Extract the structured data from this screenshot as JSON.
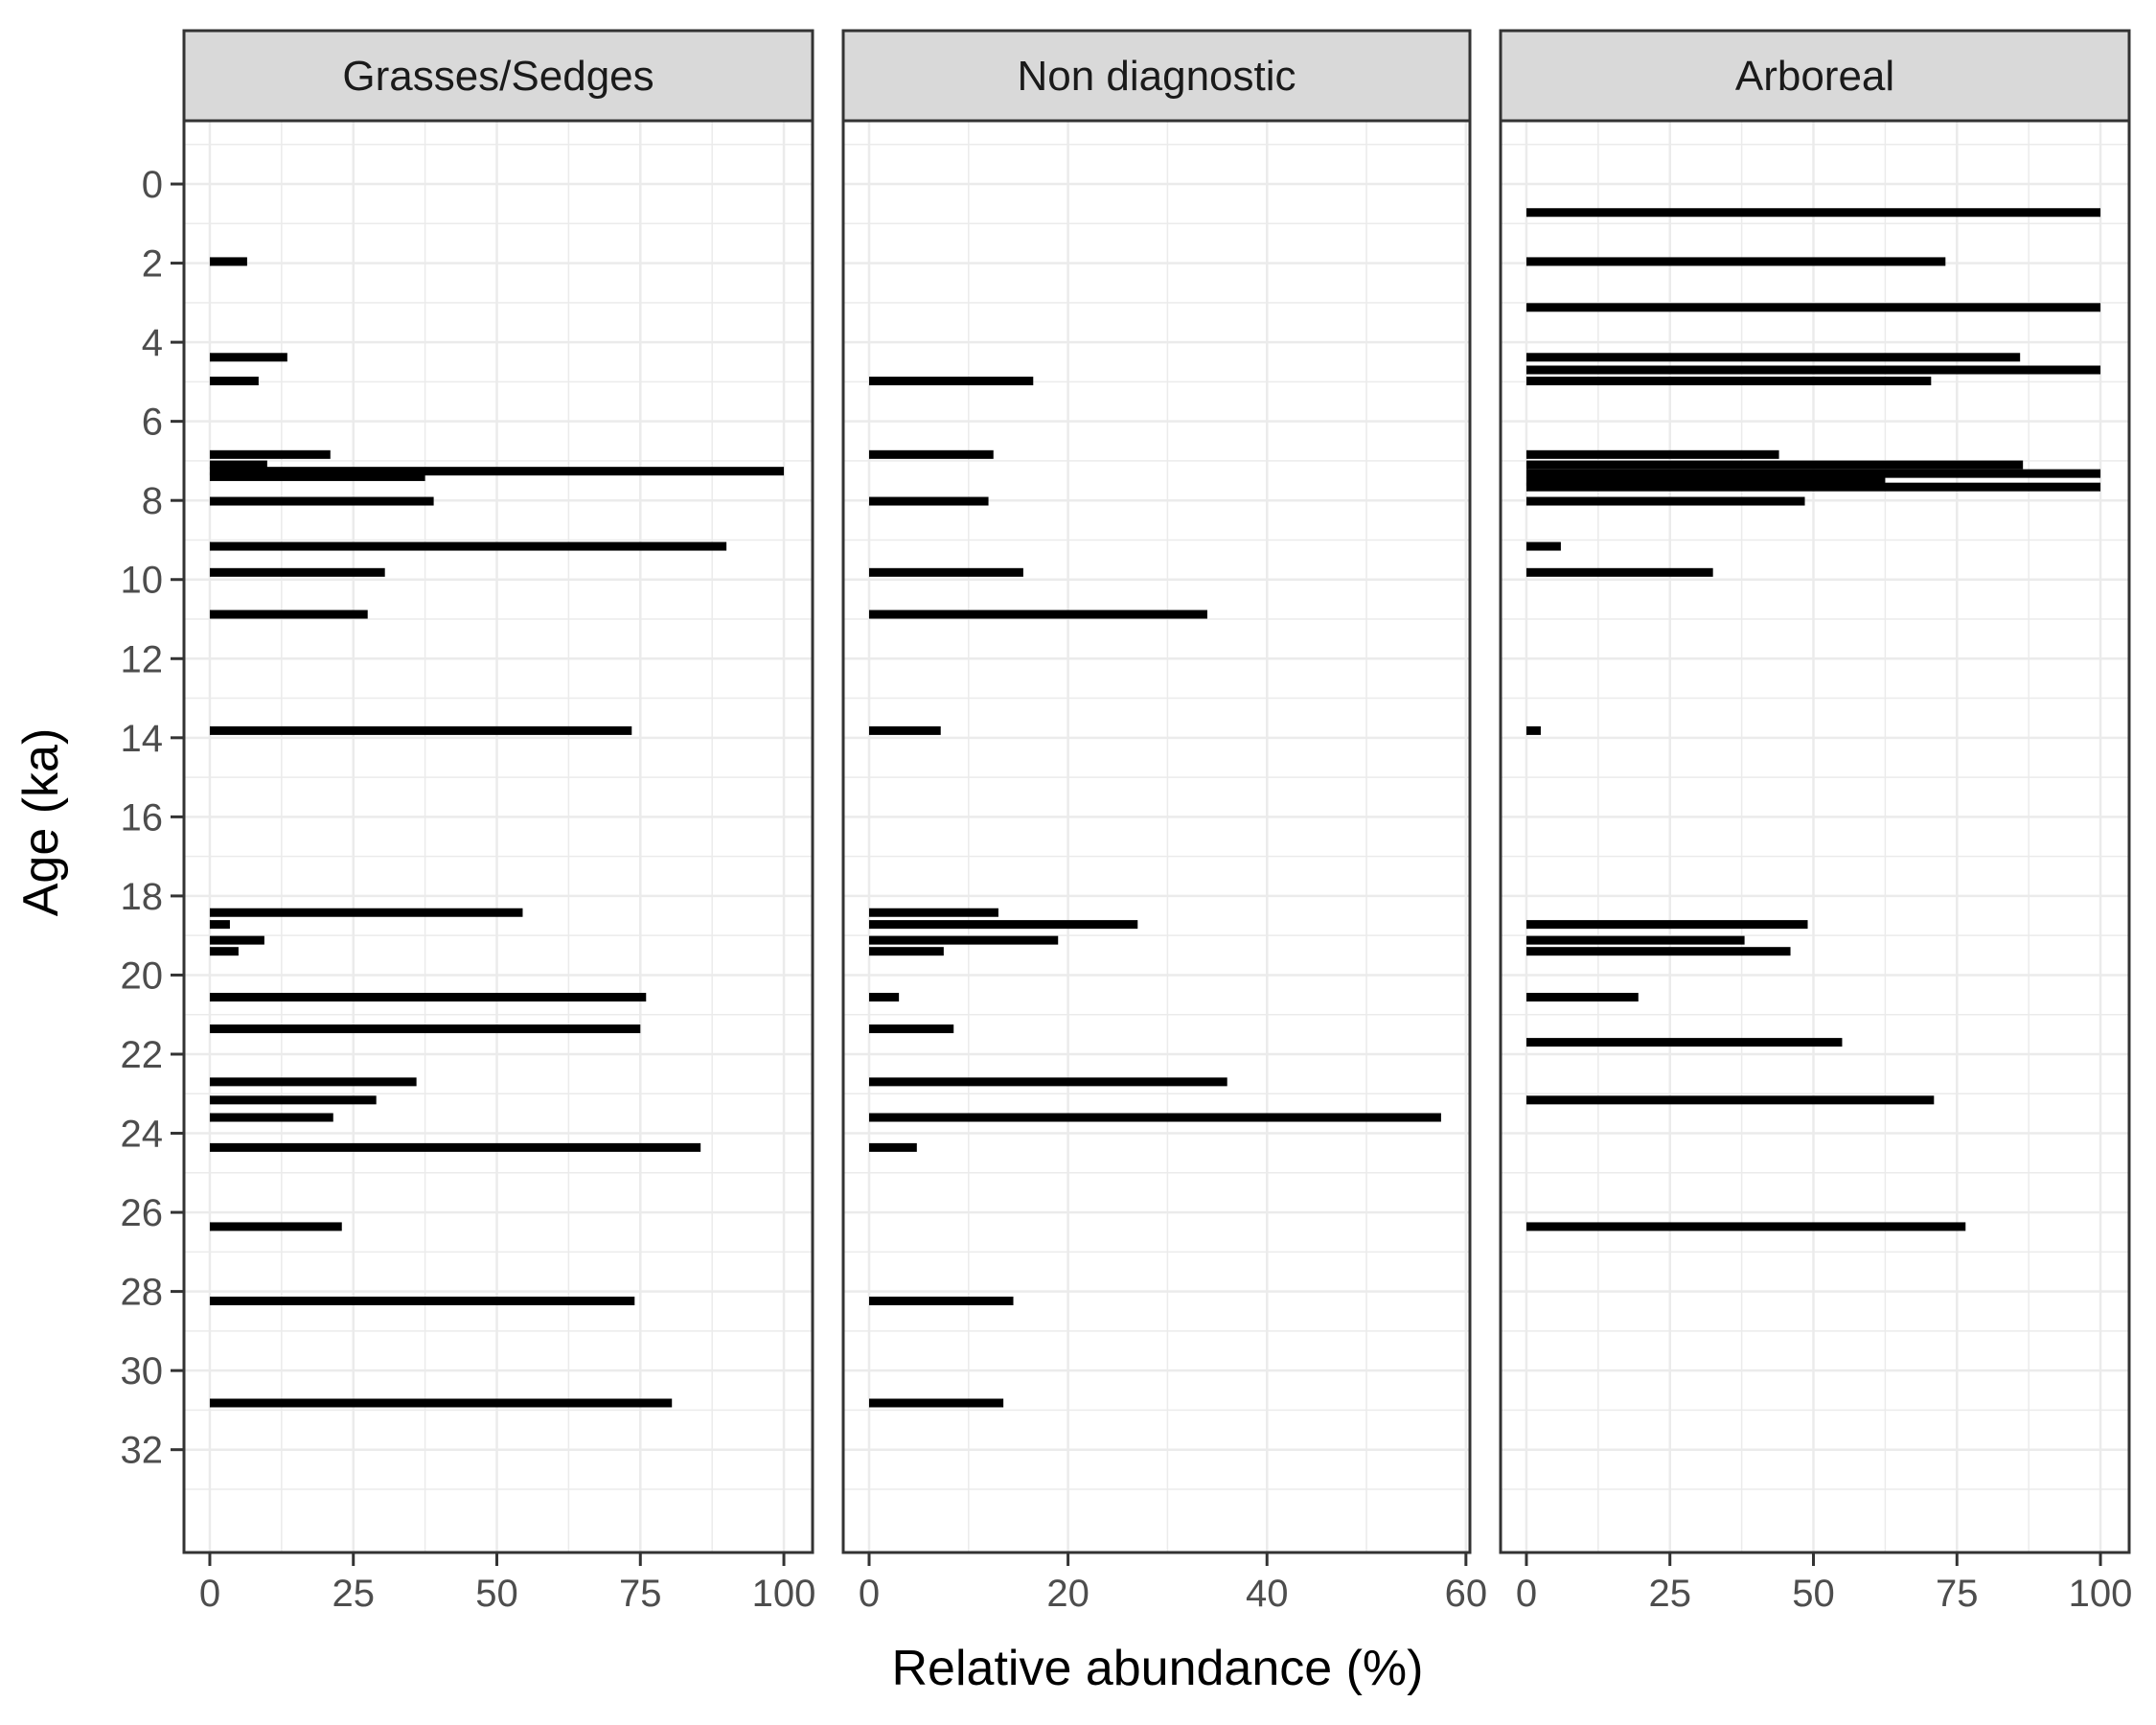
{
  "chart_data": {
    "type": "bar",
    "orientation": "horizontal",
    "xlabel": "Relative abundance (%)",
    "ylabel": "Age (ka)",
    "y_reversed": true,
    "ylim": [
      -1.6,
      34.6
    ],
    "yticks": [
      0,
      2,
      4,
      6,
      8,
      10,
      12,
      14,
      16,
      18,
      20,
      22,
      24,
      26,
      28,
      30,
      32
    ],
    "grid": true,
    "colors": {
      "bar": "#000000",
      "strip_bg": "#d9d9d9",
      "grid": "#ebebeb",
      "panel_border": "#333333"
    },
    "panels": [
      {
        "title": "Grasses/Sedges",
        "xlim": [
          -4.5,
          105
        ],
        "xticks": [
          0,
          25,
          50,
          75,
          100
        ],
        "bars": [
          {
            "age": 1.96,
            "value": 6.5
          },
          {
            "age": 4.38,
            "value": 13.5
          },
          {
            "age": 4.98,
            "value": 8.5
          },
          {
            "age": 6.84,
            "value": 21
          },
          {
            "age": 7.1,
            "value": 10
          },
          {
            "age": 7.26,
            "value": 100
          },
          {
            "age": 7.4,
            "value": 37.5
          },
          {
            "age": 8.02,
            "value": 39
          },
          {
            "age": 9.16,
            "value": 90
          },
          {
            "age": 9.82,
            "value": 30.5
          },
          {
            "age": 10.88,
            "value": 27.5
          },
          {
            "age": 13.82,
            "value": 73.5
          },
          {
            "age": 18.42,
            "value": 54.5
          },
          {
            "age": 18.72,
            "value": 3.5
          },
          {
            "age": 19.12,
            "value": 9.5
          },
          {
            "age": 19.4,
            "value": 5
          },
          {
            "age": 20.56,
            "value": 76
          },
          {
            "age": 21.36,
            "value": 75
          },
          {
            "age": 22.7,
            "value": 36
          },
          {
            "age": 23.16,
            "value": 29
          },
          {
            "age": 23.6,
            "value": 21.5
          },
          {
            "age": 24.36,
            "value": 85.5
          },
          {
            "age": 26.36,
            "value": 23
          },
          {
            "age": 28.24,
            "value": 74
          },
          {
            "age": 30.82,
            "value": 80.5
          }
        ]
      },
      {
        "title": "Non diagnostic",
        "xlim": [
          -2.6,
          60.4
        ],
        "xticks": [
          0,
          20,
          40,
          60
        ],
        "bars": [
          {
            "age": 4.98,
            "value": 16.5
          },
          {
            "age": 6.84,
            "value": 12.5
          },
          {
            "age": 8.02,
            "value": 12
          },
          {
            "age": 9.82,
            "value": 15.5
          },
          {
            "age": 10.88,
            "value": 34
          },
          {
            "age": 13.82,
            "value": 7.2
          },
          {
            "age": 18.42,
            "value": 13
          },
          {
            "age": 18.72,
            "value": 27
          },
          {
            "age": 19.12,
            "value": 19
          },
          {
            "age": 19.4,
            "value": 7.5
          },
          {
            "age": 20.56,
            "value": 3
          },
          {
            "age": 21.36,
            "value": 8.5
          },
          {
            "age": 22.7,
            "value": 36
          },
          {
            "age": 23.6,
            "value": 57.5
          },
          {
            "age": 24.36,
            "value": 4.8
          },
          {
            "age": 28.24,
            "value": 14.5
          },
          {
            "age": 30.82,
            "value": 13.5
          }
        ]
      },
      {
        "title": "Arboreal",
        "xlim": [
          -4.5,
          105
        ],
        "xticks": [
          0,
          25,
          50,
          75,
          100
        ],
        "bars": [
          {
            "age": 0.72,
            "value": 100
          },
          {
            "age": 1.96,
            "value": 73
          },
          {
            "age": 3.12,
            "value": 100
          },
          {
            "age": 4.38,
            "value": 86
          },
          {
            "age": 4.7,
            "value": 100
          },
          {
            "age": 4.98,
            "value": 70.5
          },
          {
            "age": 6.84,
            "value": 44
          },
          {
            "age": 7.1,
            "value": 86.5
          },
          {
            "age": 7.32,
            "value": 100
          },
          {
            "age": 7.52,
            "value": 62.5
          },
          {
            "age": 7.66,
            "value": 100
          },
          {
            "age": 8.02,
            "value": 48.5
          },
          {
            "age": 9.16,
            "value": 6
          },
          {
            "age": 9.82,
            "value": 32.5
          },
          {
            "age": 13.82,
            "value": 2.5
          },
          {
            "age": 18.72,
            "value": 49
          },
          {
            "age": 19.12,
            "value": 38
          },
          {
            "age": 19.4,
            "value": 46
          },
          {
            "age": 20.56,
            "value": 19.5
          },
          {
            "age": 21.7,
            "value": 55
          },
          {
            "age": 23.16,
            "value": 71
          },
          {
            "age": 26.36,
            "value": 76.5
          }
        ]
      }
    ]
  }
}
